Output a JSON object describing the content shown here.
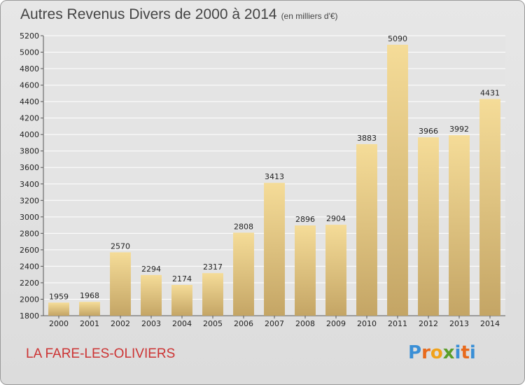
{
  "header": {
    "title": "Autres Revenus Divers de 2000 à 2014",
    "subtitle": "(en milliers d'€)"
  },
  "footer": {
    "place": "LA FARE-LES-OLIVIERS",
    "logo_letters": [
      "P",
      "r",
      "o",
      "x",
      "i",
      "t",
      "i"
    ],
    "logo_colors": [
      "#3a8fd6",
      "#e86a1c",
      "#f0a21a",
      "#5a9e2a",
      "#3a8fd6",
      "#e86a1c",
      "#3a8fd6"
    ]
  },
  "chart_data": {
    "type": "bar",
    "categories": [
      "2000",
      "2001",
      "2002",
      "2003",
      "2004",
      "2005",
      "2006",
      "2007",
      "2008",
      "2009",
      "2010",
      "2011",
      "2012",
      "2013",
      "2014"
    ],
    "values": [
      1959,
      1968,
      2570,
      2294,
      2174,
      2317,
      2808,
      3413,
      2896,
      2904,
      3883,
      5090,
      3966,
      3992,
      4431
    ],
    "title": "Autres Revenus Divers de 2000 à 2014",
    "xlabel": "",
    "ylabel": "",
    "ylim": [
      1800,
      5200
    ],
    "yticks": [
      1800,
      2000,
      2200,
      2400,
      2600,
      2800,
      3000,
      3200,
      3400,
      3600,
      3800,
      4000,
      4200,
      4400,
      4600,
      4800,
      5000,
      5200
    ],
    "grid": true,
    "bar_color_light": "#f5dc98",
    "bar_color_dark": "#c4a565"
  }
}
